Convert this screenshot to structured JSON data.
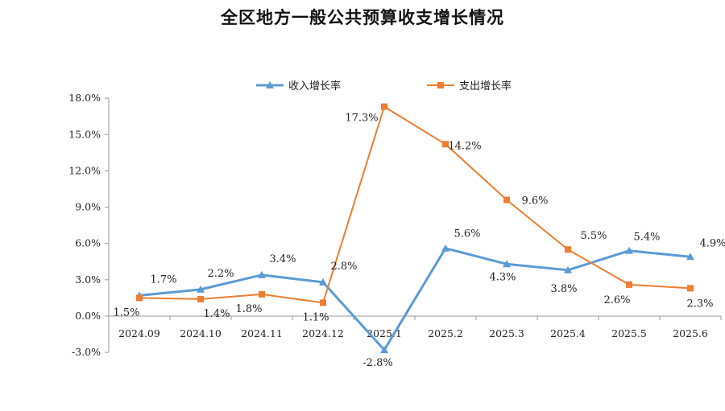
{
  "chart_data": {
    "type": "line",
    "title": "全区地方一般公共预算收支增长情况",
    "categories": [
      "2024.09",
      "2024.10",
      "2024.11",
      "2024.12",
      "2025.1",
      "2025.2",
      "2025.3",
      "2025.4",
      "2025.5",
      "2025.6"
    ],
    "series": [
      {
        "name": "收入增长率",
        "color": "#5B9BD5",
        "marker": "triangle",
        "values": [
          1.7,
          2.2,
          3.4,
          2.8,
          -2.8,
          5.6,
          4.3,
          3.8,
          5.4,
          4.9
        ],
        "labels": [
          "1.7%",
          "2.2%",
          "3.4%",
          "2.8%",
          "-2.8%",
          "5.6%",
          "4.3%",
          "3.8%",
          "5.4%",
          "4.9%"
        ]
      },
      {
        "name": "支出增长率",
        "color": "#ED7D31",
        "marker": "square",
        "values": [
          1.5,
          1.4,
          1.8,
          1.1,
          17.3,
          14.2,
          9.6,
          5.5,
          2.6,
          2.3
        ],
        "labels": [
          "1.5%",
          "1.4%",
          "1.8%",
          "1.1%",
          "17.3%",
          "14.2%",
          "9.6%",
          "5.5%",
          "2.6%",
          "2.3%"
        ]
      }
    ],
    "ylim": [
      -3,
      18
    ],
    "yticks": [
      -3,
      0,
      3,
      6,
      9,
      12,
      15,
      18
    ],
    "ytick_labels": [
      "-3.0%",
      "0.0%",
      "3.0%",
      "6.0%",
      "9.0%",
      "12.0%",
      "15.0%",
      "18.0%"
    ],
    "xlabel": "",
    "ylabel": "",
    "legend_position": "top",
    "grid": false
  }
}
